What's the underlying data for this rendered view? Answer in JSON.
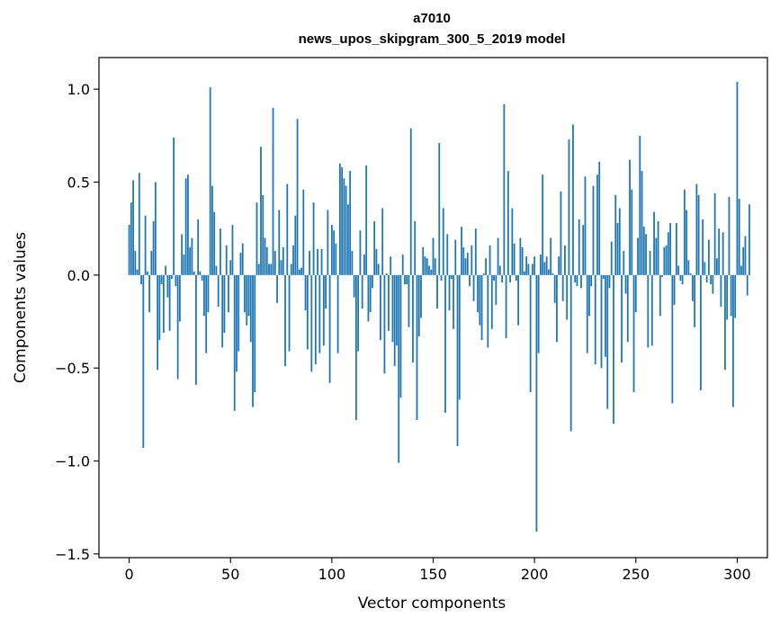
{
  "chart_data": {
    "type": "bar",
    "title_line1": "a7010",
    "title_line2": "news_upos_skipgram_300_5_2019 model",
    "xlabel": "Vector components",
    "ylabel": "Components values",
    "xlim": [
      -14.9,
      314.9
    ],
    "ylim": [
      -1.52,
      1.17
    ],
    "xticks": [
      0,
      50,
      100,
      150,
      200,
      250,
      300
    ],
    "yticks": [
      -1.5,
      -1.0,
      -0.5,
      0.0,
      0.5,
      1.0
    ],
    "ytick_labels": [
      "−1.5",
      "−1.0",
      "−0.5",
      "0.0",
      "0.5",
      "1.0"
    ],
    "color": "#1f77b4",
    "values": [
      0.27,
      0.39,
      0.51,
      0.13,
      0.03,
      0.55,
      -0.05,
      -0.93,
      0.32,
      0.02,
      -0.2,
      0.13,
      0.29,
      0.5,
      -0.51,
      -0.35,
      -0.05,
      -0.31,
      0.05,
      -0.12,
      -0.3,
      -0.02,
      0.74,
      -0.06,
      -0.56,
      -0.25,
      0.22,
      0.11,
      0.52,
      0.54,
      0.15,
      0.2,
      0.02,
      -0.59,
      0.3,
      0.02,
      -0.03,
      -0.22,
      -0.42,
      -0.2,
      1.01,
      0.48,
      0.34,
      0.05,
      -0.17,
      0.25,
      -0.39,
      -0.31,
      0.16,
      -0.2,
      0.08,
      0.27,
      -0.73,
      -0.52,
      -0.41,
      0.12,
      0.17,
      -0.2,
      -0.27,
      -0.22,
      -0.36,
      -0.71,
      -0.63,
      0.39,
      0.06,
      0.69,
      0.43,
      0.2,
      0.15,
      0.06,
      0.06,
      0.9,
      0.13,
      -0.15,
      0.35,
      0.08,
      0.15,
      -0.49,
      0.49,
      -0.41,
      0.06,
      0.16,
      0.32,
      0.84,
      0.03,
      0.04,
      0.46,
      -0.19,
      -0.4,
      0.13,
      -0.52,
      0.39,
      -0.48,
      0.14,
      -0.42,
      0.14,
      -0.38,
      -0.18,
      0.35,
      -0.58,
      0.27,
      0.24,
      0.17,
      -0.42,
      0.6,
      0.58,
      0.52,
      0.48,
      0.38,
      0.56,
      0.13,
      -0.12,
      -0.78,
      -0.41,
      0.24,
      -0.18,
      0.11,
      0.59,
      -0.25,
      -0.2,
      -0.07,
      0.29,
      0.14,
      0.06,
      -0.35,
      0.36,
      -0.53,
      0.01,
      -0.3,
      0.1,
      -0.36,
      -0.49,
      -0.38,
      -1.01,
      -0.66,
      0.11,
      -0.05,
      -0.05,
      -0.28,
      0.79,
      -0.47,
      0.29,
      -0.78,
      -0.33,
      -0.23,
      0.15,
      0.1,
      0.09,
      0.05,
      0.03,
      0.2,
      0.09,
      -0.18,
      0.71,
      -0.03,
      0.36,
      -0.74,
      0.22,
      -0.19,
      -0.02,
      -0.29,
      0.19,
      -0.92,
      -0.67,
      0.26,
      0.15,
      0.09,
      0.12,
      -0.06,
      0.16,
      -0.14,
      0.25,
      -0.2,
      -0.27,
      -0.35,
      0.01,
      0.09,
      -0.39,
      0.16,
      -0.29,
      -0.03,
      -0.16,
      0.2,
      0.05,
      -0.04,
      0.92,
      -0.34,
      0.56,
      -0.04,
      0.36,
      0.17,
      -0.03,
      -0.27,
      0.2,
      0.15,
      0.02,
      0.1,
      0.06,
      -0.63,
      0.06,
      0.1,
      -1.38,
      -0.42,
      0.11,
      0.54,
      0.07,
      0.1,
      0.03,
      0.2,
      0.01,
      -0.15,
      -0.36,
      0.1,
      0.45,
      -0.14,
      0.16,
      -0.24,
      0.73,
      -0.84,
      0.81,
      -0.04,
      -0.06,
      0.3,
      -0.07,
      0.27,
      0.53,
      -0.42,
      -0.22,
      -0.06,
      0.48,
      -0.48,
      0.54,
      0.61,
      -0.5,
      -0.02,
      -0.44,
      -0.72,
      -0.07,
      0.18,
      -0.8,
      0.43,
      0.28,
      0.36,
      -0.47,
      0.13,
      -0.1,
      -0.36,
      0.62,
      0.46,
      -0.63,
      -0.2,
      0.2,
      0.75,
      0.56,
      0.26,
      0.22,
      -0.39,
      0.13,
      -0.38,
      0.34,
      0.2,
      0.29,
      -0.22,
      -0.01,
      0.15,
      0.16,
      0.23,
      0.28,
      -0.69,
      -0.16,
      0.28,
      0.05,
      -0.03,
      -0.05,
      0.46,
      0.35,
      0.08,
      0.01,
      -0.14,
      -0.28,
      0.49,
      0.43,
      -0.62,
      0.3,
      0.07,
      -0.04,
      0.19,
      -0.05,
      -0.1,
      0.44,
      0.09,
      0.25,
      -0.17,
      0.23,
      -0.51,
      -0.24,
      0.42,
      -0.22,
      -0.71,
      -0.23,
      1.04,
      0.41,
      0.05,
      0.15,
      0.21,
      -0.11,
      0.38
    ]
  }
}
